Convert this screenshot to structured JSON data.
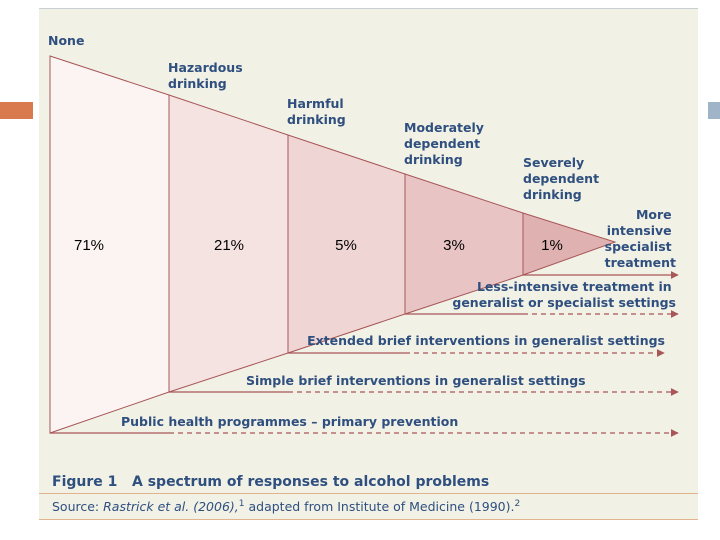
{
  "figure": {
    "stages": [
      {
        "lines": [
          "None"
        ]
      },
      {
        "lines": [
          "Hazardous",
          "drinking"
        ]
      },
      {
        "lines": [
          "Harmful",
          "drinking"
        ]
      },
      {
        "lines": [
          "Moderately",
          "dependent",
          "drinking"
        ]
      },
      {
        "lines": [
          "Severely",
          "dependent",
          "drinking"
        ]
      },
      {
        "lines": [
          "More",
          "intensive",
          "specialist",
          "treatment"
        ]
      }
    ],
    "percentages": [
      "71%",
      "21%",
      "5%",
      "3%",
      "1%"
    ],
    "interventions": {
      "less_intensive": [
        "Less-intensive treatment in",
        "generalist or specialist settings"
      ],
      "extended_brief": "Extended brief interventions in generalist settings",
      "simple_brief": "Simple brief interventions in generalist settings",
      "public_health": "Public health programmes – primary prevention"
    },
    "colors": {
      "outline": "#a85658",
      "fill_1": "#fbf4f3",
      "fill_2": "#f5e3e2",
      "fill_3": "#efd5d4",
      "fill_4": "#e8c5c4",
      "fill_5": "#dfb1b1",
      "text": "#2f4f7f",
      "panel": "#f1f1e6",
      "accent_orange": "#d9794e",
      "accent_blue": "#9fb4c7"
    }
  },
  "caption": {
    "figure_number": "Figure 1",
    "title": "A spectrum of responses to alcohol problems",
    "source_prefix": "Source: ",
    "source_authors": "Rastrick et al. (2006),",
    "source_ref1": "1",
    "source_middle": " adapted from Institute of Medicine (1990).",
    "source_ref2": "2"
  }
}
